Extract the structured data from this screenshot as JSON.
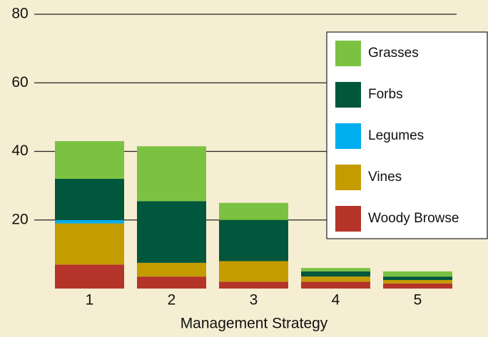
{
  "chart_data": {
    "type": "stacked_bar",
    "x_label": "Management Strategy",
    "categories": [
      "1",
      "2",
      "3",
      "4",
      "5"
    ],
    "series": [
      {
        "name": "Woody Browse",
        "color": "#b5342a",
        "values": [
          7,
          3.5,
          2,
          2,
          1.5
        ]
      },
      {
        "name": "Vines",
        "color": "#c49c00",
        "values": [
          12,
          4,
          6,
          1.5,
          1
        ]
      },
      {
        "name": "Legumes",
        "color": "#00aeef",
        "values": [
          1,
          0,
          0,
          0,
          0
        ]
      },
      {
        "name": "Forbs",
        "color": "#00573c",
        "values": [
          12,
          18,
          12,
          1.5,
          1
        ]
      },
      {
        "name": "Grasses",
        "color": "#7cc242",
        "values": [
          11,
          16,
          5,
          1,
          1.5
        ]
      }
    ],
    "ylim": [
      0,
      80
    ],
    "yticks": [
      20,
      40,
      60,
      80
    ],
    "grid": true,
    "legend": "right"
  }
}
